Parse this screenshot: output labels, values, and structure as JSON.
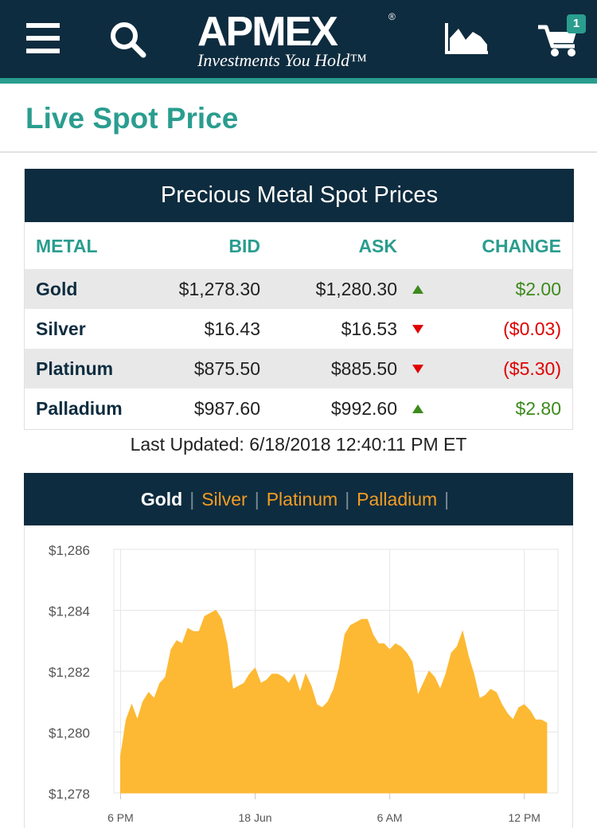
{
  "header": {
    "menu_icon": "hamburger-menu-icon",
    "search_icon": "search-icon",
    "logo": {
      "brand": "APMEX",
      "registered": "®",
      "tagline": "Investments You Hold™"
    },
    "charts_icon": "area-chart-icon",
    "cart_icon": "shopping-cart-icon",
    "cart_count": "1"
  },
  "page": {
    "title": "Live Spot Price"
  },
  "spot_table": {
    "title": "Precious Metal Spot Prices",
    "columns": {
      "metal": "METAL",
      "bid": "BID",
      "ask": "ASK",
      "change": "CHANGE"
    },
    "rows": [
      {
        "metal": "Gold",
        "bid": "$1,278.30",
        "ask": "$1,280.30",
        "direction": "up",
        "change": "$2.00"
      },
      {
        "metal": "Silver",
        "bid": "$16.43",
        "ask": "$16.53",
        "direction": "down",
        "change": "($0.03)"
      },
      {
        "metal": "Platinum",
        "bid": "$875.50",
        "ask": "$885.50",
        "direction": "down",
        "change": "($5.30)"
      },
      {
        "metal": "Palladium",
        "bid": "$987.60",
        "ask": "$992.60",
        "direction": "up",
        "change": "$2.80"
      }
    ],
    "last_updated": "Last Updated: 6/18/2018 12:40:11 PM ET"
  },
  "chart_tabs": {
    "items": [
      "Gold",
      "Silver",
      "Platinum",
      "Palladium"
    ],
    "separator": "|",
    "active": "Gold"
  },
  "colors": {
    "navy": "#0e2c3f",
    "teal": "#2a9d8f",
    "orange": "#f39c23",
    "gold_fill": "#fdb933",
    "up_green": "#3c8b1c",
    "down_red": "#e00000"
  },
  "chart_data": {
    "type": "area",
    "series": [
      {
        "x": [
          0,
          0.25,
          0.5,
          0.75,
          1,
          1.25,
          1.5,
          1.75,
          2,
          2.25,
          2.5,
          2.75,
          3,
          3.25,
          3.5,
          3.75,
          4,
          4.25,
          4.5,
          4.75,
          5,
          5.25,
          5.5,
          5.75,
          6,
          6.25,
          6.5,
          6.75,
          7,
          7.25,
          7.5,
          7.75,
          8,
          8.25,
          8.5,
          8.75,
          9,
          9.25,
          9.5,
          9.75,
          10,
          10.25,
          10.5,
          10.75,
          11,
          11.25,
          11.5,
          11.75,
          12,
          12.25,
          12.5,
          12.75,
          13,
          13.25,
          13.5,
          13.75,
          14,
          14.25,
          14.5,
          14.75,
          15,
          15.25,
          15.5,
          15.75,
          16,
          16.25,
          16.5,
          16.75,
          17,
          17.25,
          17.5,
          17.75,
          18,
          18.25,
          18.5,
          18.75,
          19
        ],
        "values": [
          1279.2,
          1280.4,
          1280.9,
          1280.4,
          1281.0,
          1281.3,
          1281.1,
          1281.6,
          1281.8,
          1282.7,
          1283.0,
          1282.9,
          1283.4,
          1283.3,
          1283.3,
          1283.8,
          1283.9,
          1284.0,
          1283.7,
          1282.9,
          1281.4,
          1281.5,
          1281.6,
          1281.9,
          1282.1,
          1281.6,
          1281.7,
          1281.9,
          1281.9,
          1281.8,
          1281.6,
          1281.9,
          1281.3,
          1281.9,
          1281.5,
          1280.9,
          1280.8,
          1281.0,
          1281.4,
          1282.1,
          1283.2,
          1283.5,
          1283.6,
          1283.7,
          1283.7,
          1283.2,
          1282.9,
          1282.9,
          1282.7,
          1282.9,
          1282.8,
          1282.6,
          1282.3,
          1281.2,
          1281.6,
          1282.0,
          1281.8,
          1281.4,
          1281.9,
          1282.6,
          1282.8,
          1283.3,
          1282.5,
          1281.9,
          1281.1,
          1281.2,
          1281.4,
          1281.3,
          1280.9,
          1280.6,
          1280.4,
          1280.8,
          1280.9,
          1280.7,
          1280.4,
          1280.4,
          1280.3
        ],
        "fill": "#fdb933"
      }
    ],
    "x_ticks": [
      {
        "pos": 0,
        "label": "6 PM"
      },
      {
        "pos": 6,
        "label": "18 Jun"
      },
      {
        "pos": 12,
        "label": "6 AM"
      },
      {
        "pos": 18,
        "label": "12 PM"
      }
    ],
    "y_ticks": [
      1278,
      1280,
      1282,
      1284,
      1286
    ],
    "y_tick_labels": [
      "$1,278",
      "$1,280",
      "$1,282",
      "$1,284",
      "$1,286"
    ],
    "xlim": [
      -0.3,
      19.5
    ],
    "ylim": [
      1278,
      1286
    ],
    "grid": true,
    "title": "",
    "xlabel": "",
    "ylabel": ""
  }
}
